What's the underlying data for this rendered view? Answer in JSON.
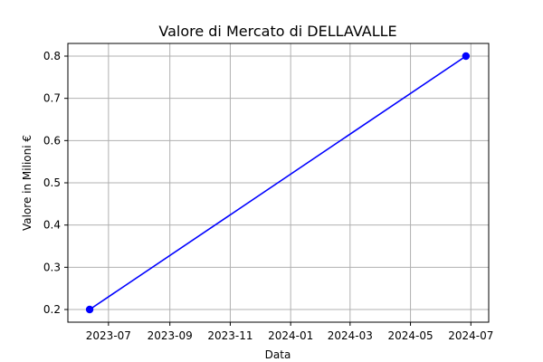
{
  "chart_data": {
    "type": "line",
    "title": "Valore di Mercato di DELLAVALLE",
    "xlabel": "Data",
    "ylabel": "Valore in Milioni €",
    "grid": true,
    "xlim": [
      "2023-05-21",
      "2024-07-19"
    ],
    "ylim": [
      0.17,
      0.83
    ],
    "x_ticks": [
      {
        "date": "2023-07-01",
        "label": "2023-07"
      },
      {
        "date": "2023-09-01",
        "label": "2023-09"
      },
      {
        "date": "2023-11-01",
        "label": "2023-11"
      },
      {
        "date": "2024-01-01",
        "label": "2024-01"
      },
      {
        "date": "2024-03-01",
        "label": "2024-03"
      },
      {
        "date": "2024-05-01",
        "label": "2024-05"
      },
      {
        "date": "2024-07-01",
        "label": "2024-07"
      }
    ],
    "y_ticks": [
      0.2,
      0.3,
      0.4,
      0.5,
      0.6,
      0.7,
      0.8
    ],
    "series": [
      {
        "color": "#0000ff",
        "marker": "circle",
        "x": [
          "2023-06-12",
          "2024-06-26"
        ],
        "y": [
          0.2,
          0.8
        ]
      }
    ]
  }
}
